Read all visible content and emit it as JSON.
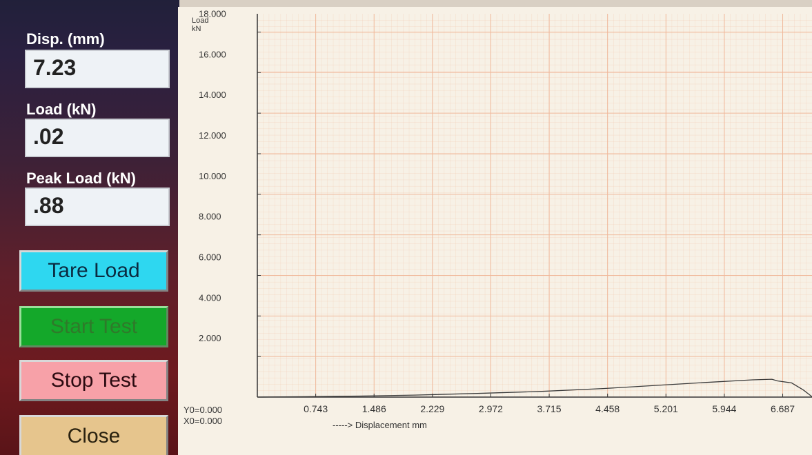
{
  "panel": {
    "disp_label": "Disp. (mm)",
    "disp_value": "7.23",
    "load_label": "Load  (kN)",
    "load_value": ".02",
    "peak_label": "Peak Load (kN)",
    "peak_value": ".88"
  },
  "buttons": {
    "tare": "Tare Load",
    "start": "Start Test",
    "stop": "Stop Test",
    "close": "Close"
  },
  "colors": {
    "tare": "#2ed7f0",
    "start": "#14a82a",
    "stop": "#f7a1a8",
    "close": "#e6c58d",
    "grid": "#f0b89a",
    "curve": "#3a3a3a"
  },
  "chart_data": {
    "type": "line",
    "y_title": "Load",
    "y_unit": "kN",
    "x_title": "-----> Displacement  mm",
    "y0_label": "Y0=0.000",
    "x0_label": "X0=0.000",
    "y_ticks": [
      "2.000",
      "4.000",
      "6.000",
      "8.000",
      "10.000",
      "12.000",
      "14.000",
      "16.000",
      "18.000"
    ],
    "x_ticks": [
      "0.743",
      "1.486",
      "2.229",
      "2.972",
      "3.715",
      "4.458",
      "5.201",
      "5.944",
      "6.687"
    ],
    "xlim": [
      0,
      7.06
    ],
    "ylim": [
      0,
      18.9
    ],
    "grid": true,
    "series": [
      {
        "x": [
          0,
          0.6,
          1.3,
          2.0,
          2.8,
          3.6,
          4.4,
          5.1,
          5.7,
          6.3,
          6.55,
          6.62,
          6.8,
          6.95,
          7.06
        ],
        "y": [
          0.0,
          0.02,
          0.05,
          0.1,
          0.18,
          0.28,
          0.42,
          0.58,
          0.72,
          0.85,
          0.88,
          0.8,
          0.7,
          0.35,
          0.02
        ]
      }
    ]
  }
}
